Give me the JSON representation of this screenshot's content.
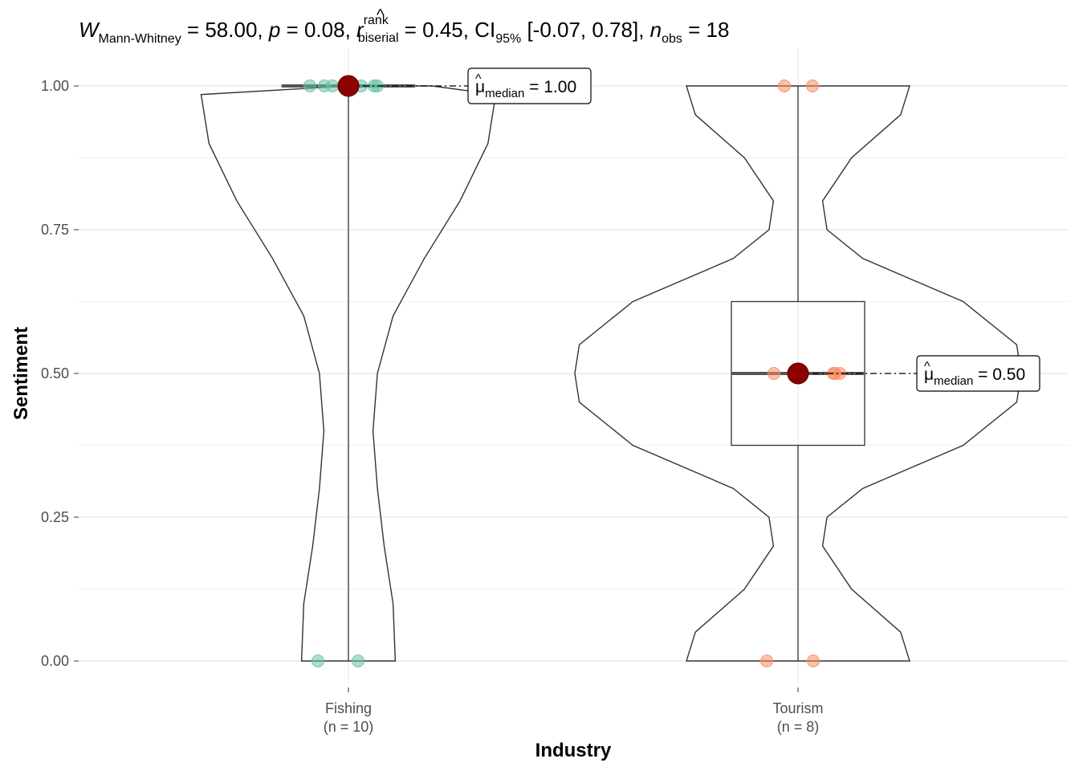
{
  "chart_data": {
    "type": "violin",
    "title_parts": {
      "W": "W",
      "W_sub": "Mann-Whitney",
      "W_val": " = 58.00, ",
      "p": "p",
      "p_val": " = 0.08, ",
      "r": "r",
      "r_sup": "rank",
      "r_sub": "biserial",
      "r_val": " = 0.45, CI",
      "ci_sub": "95%",
      "ci_val": " [-0.07, 0.78], ",
      "n": "n",
      "n_sub": "obs",
      "n_val": " = 18"
    },
    "xlabel": "Industry",
    "ylabel": "Sentiment",
    "ylim": [
      0,
      1
    ],
    "yticks": [
      "0.00",
      "0.25",
      "0.50",
      "0.75",
      "1.00"
    ],
    "y_tick_values": [
      0,
      0.25,
      0.5,
      0.75,
      1.0
    ],
    "grid": true,
    "categories": [
      {
        "name": "Fishing",
        "n_label": "(n = 10)",
        "color": "#66c2a5",
        "points": [
          1,
          1,
          1,
          1,
          1,
          1,
          1,
          1,
          0,
          0
        ],
        "median": 1.0,
        "q1": 1.0,
        "q3": 1.0,
        "median_label_symbol": "μ",
        "median_label_sub": "median",
        "median_label_value": " = 1.00"
      },
      {
        "name": "Tourism",
        "n_label": "(n = 8)",
        "color": "#fc8d62",
        "points": [
          1,
          1,
          0.5,
          0.5,
          0.5,
          0.5,
          0,
          0
        ],
        "median": 0.5,
        "q1": 0.375,
        "q3": 0.625,
        "median_label_symbol": "μ",
        "median_label_sub": "median",
        "median_label_value": " = 0.50"
      }
    ],
    "median_point_color": "#8b0000"
  }
}
